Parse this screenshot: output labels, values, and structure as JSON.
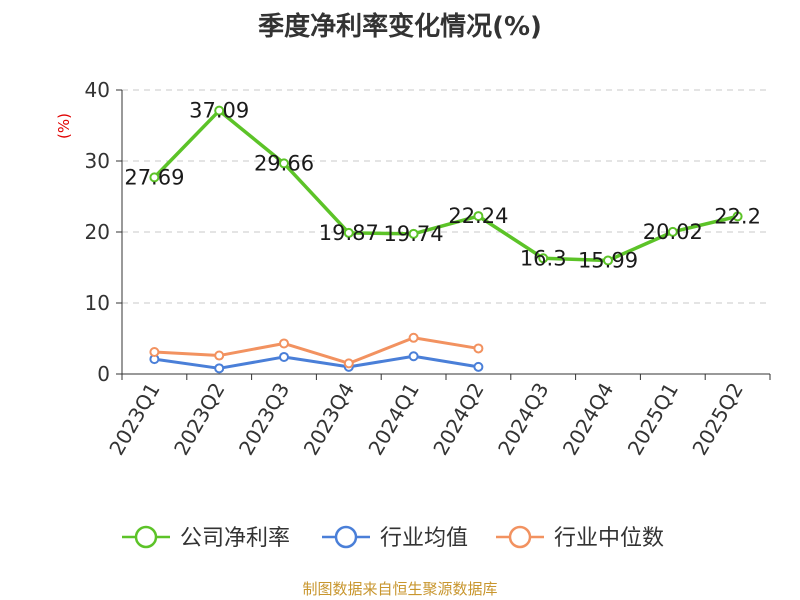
{
  "chart_data": {
    "type": "line",
    "title": "季度净利率变化情况(%)",
    "ylabel": "(%)",
    "xlabel": "",
    "ylim": [
      0,
      40
    ],
    "yticks": [
      0,
      10,
      20,
      30,
      40
    ],
    "categories": [
      "2023Q1",
      "2023Q2",
      "2023Q3",
      "2023Q4",
      "2024Q1",
      "2024Q2",
      "2024Q3",
      "2024Q4",
      "2025Q1",
      "2025Q2"
    ],
    "grid": "horizontal-dashed",
    "legend_position": "bottom",
    "series": [
      {
        "name": "公司净利率",
        "color": "#5cc328",
        "values": [
          27.69,
          37.09,
          29.66,
          19.87,
          19.74,
          22.24,
          16.3,
          15.99,
          20.02,
          22.2
        ],
        "labels": [
          "27.69",
          "37.09",
          "29.66",
          "19.87",
          "19.74",
          "22.24",
          "16.3",
          "15.99",
          "20.02",
          "22.2"
        ]
      },
      {
        "name": "行业均值",
        "color": "#4a7fd8",
        "values": [
          2.1,
          0.8,
          2.4,
          1.0,
          2.5,
          1.0,
          null,
          null,
          null,
          null
        ]
      },
      {
        "name": "行业中位数",
        "color": "#f29260",
        "values": [
          3.1,
          2.6,
          4.3,
          1.5,
          5.1,
          3.6,
          null,
          null,
          null,
          null
        ]
      }
    ]
  },
  "footer": "制图数据来自恒生聚源数据库"
}
